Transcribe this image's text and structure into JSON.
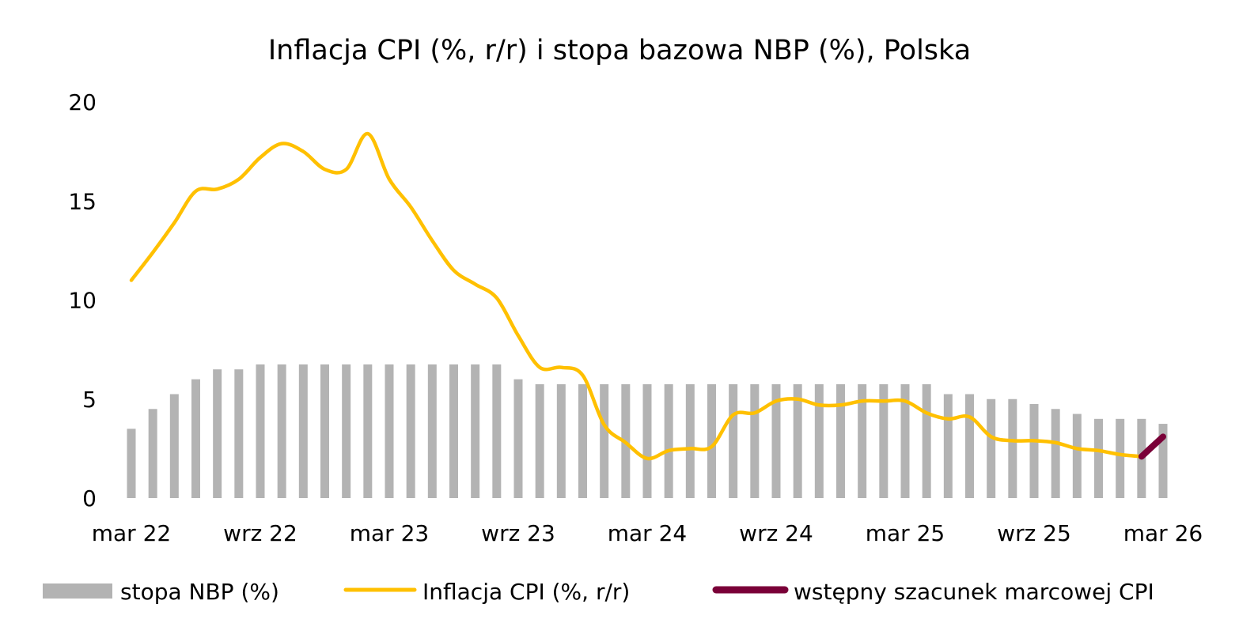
{
  "chart_data": {
    "type": "bar+line",
    "title": "Inflacja CPI (%, r/r) i stopa bazowa NBP (%), Polska",
    "xlabel": "",
    "ylabel": "",
    "ylim": [
      0,
      20
    ],
    "yticks": [
      0,
      5,
      10,
      15,
      20
    ],
    "grid": false,
    "legend_position": "bottom",
    "x_tick_labels": [
      "mar 22",
      "wrz 22",
      "mar 23",
      "wrz 23",
      "mar 24",
      "wrz 24",
      "mar 25",
      "wrz 25",
      "mar 26"
    ],
    "x_tick_every": 6,
    "months": [
      "2022-03",
      "2022-04",
      "2022-05",
      "2022-06",
      "2022-07",
      "2022-08",
      "2022-09",
      "2022-10",
      "2022-11",
      "2022-12",
      "2023-01",
      "2023-02",
      "2023-03",
      "2023-04",
      "2023-05",
      "2023-06",
      "2023-07",
      "2023-08",
      "2023-09",
      "2023-10",
      "2023-11",
      "2023-12",
      "2024-01",
      "2024-02",
      "2024-03",
      "2024-04",
      "2024-05",
      "2024-06",
      "2024-07",
      "2024-08",
      "2024-09",
      "2024-10",
      "2024-11",
      "2024-12",
      "2025-01",
      "2025-02",
      "2025-03",
      "2025-04",
      "2025-05",
      "2025-06",
      "2025-07",
      "2025-08",
      "2025-09",
      "2025-10",
      "2025-11",
      "2025-12",
      "2026-01",
      "2026-02",
      "2026-03"
    ],
    "series": [
      {
        "name": "stopa NBP (%)",
        "type": "bar",
        "color": "#b3b3b3",
        "values": [
          3.5,
          4.5,
          5.25,
          6.0,
          6.5,
          6.5,
          6.75,
          6.75,
          6.75,
          6.75,
          6.75,
          6.75,
          6.75,
          6.75,
          6.75,
          6.75,
          6.75,
          6.75,
          6.0,
          5.75,
          5.75,
          5.75,
          5.75,
          5.75,
          5.75,
          5.75,
          5.75,
          5.75,
          5.75,
          5.75,
          5.75,
          5.75,
          5.75,
          5.75,
          5.75,
          5.75,
          5.75,
          5.75,
          5.25,
          5.25,
          5.0,
          5.0,
          4.75,
          4.5,
          4.25,
          4.0,
          4.0,
          4.0,
          3.75
        ]
      },
      {
        "name": "Inflacja CPI (%, r/r)",
        "type": "line",
        "color": "#ffc000",
        "values": [
          11.0,
          12.4,
          13.9,
          15.5,
          15.6,
          16.1,
          17.2,
          17.9,
          17.5,
          16.6,
          16.6,
          18.4,
          16.1,
          14.7,
          13.0,
          11.5,
          10.8,
          10.1,
          8.2,
          6.6,
          6.6,
          6.2,
          3.7,
          2.8,
          2.0,
          2.4,
          2.5,
          2.6,
          4.2,
          4.3,
          4.9,
          5.0,
          4.7,
          4.7,
          4.9,
          4.9,
          4.9,
          4.3,
          4.0,
          4.1,
          3.1,
          2.9,
          2.9,
          2.8,
          2.5,
          2.4,
          2.2,
          2.1,
          null
        ]
      },
      {
        "name": "wstępny szacunek marcowej CPI",
        "type": "line",
        "color": "#7a0038",
        "values": [
          null,
          null,
          null,
          null,
          null,
          null,
          null,
          null,
          null,
          null,
          null,
          null,
          null,
          null,
          null,
          null,
          null,
          null,
          null,
          null,
          null,
          null,
          null,
          null,
          null,
          null,
          null,
          null,
          null,
          null,
          null,
          null,
          null,
          null,
          null,
          null,
          null,
          null,
          null,
          null,
          null,
          null,
          null,
          null,
          null,
          null,
          null,
          2.1,
          3.1
        ]
      }
    ]
  }
}
